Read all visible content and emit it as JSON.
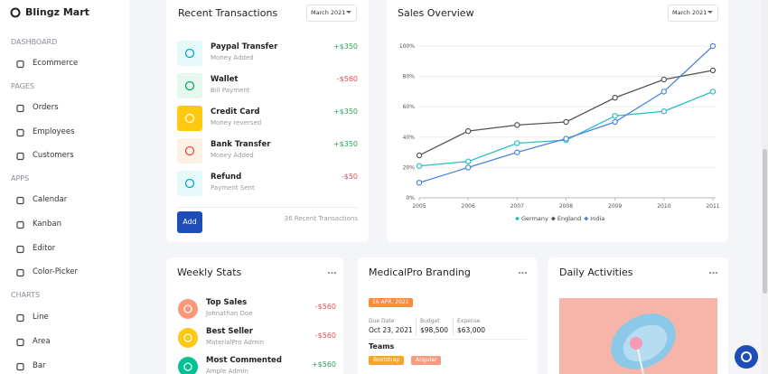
{
  "brand": "Blingz Mart",
  "sidebar": [
    {
      "heading": "DASHBOARD",
      "items": [
        "Ecommerce"
      ]
    },
    {
      "heading": "PAGES",
      "items": [
        "Orders",
        "Employees",
        "Customers"
      ]
    },
    {
      "heading": "APPS",
      "items": [
        "Calendar",
        "Kanban",
        "Editor",
        "Color-Picker"
      ]
    },
    {
      "heading": "CHARTS",
      "items": [
        "Line",
        "Area",
        "Bar"
      ]
    }
  ],
  "transactions": {
    "title": "Recent Transactions",
    "period": "March 2021",
    "items": [
      {
        "name": "Paypal Transfer",
        "note": "Money Added",
        "amount": "+$350"
      },
      {
        "name": "Wallet",
        "note": "Bill Payment",
        "amount": "-$560"
      },
      {
        "name": "Credit Card",
        "note": "Money reversed",
        "amount": "+$350"
      },
      {
        "name": "Bank Transfer",
        "note": "Money Added",
        "amount": "+$350"
      },
      {
        "name": "Refund",
        "note": "Payment Sent",
        "amount": "-$50"
      }
    ],
    "button": "Add",
    "footer": "36 Recent Transactions"
  },
  "sales": {
    "title": "Sales Overview",
    "period": "March 2021"
  },
  "chart_data": {
    "type": "line",
    "categories": [
      "2005",
      "2006",
      "2007",
      "2008",
      "2009",
      "2010",
      "2011"
    ],
    "series": [
      {
        "name": "Germany",
        "color": "#2bbfc4",
        "values": [
          21,
          24,
          36,
          38,
          54,
          57,
          70
        ]
      },
      {
        "name": "England",
        "color": "#555555",
        "values": [
          28,
          44,
          48,
          50,
          66,
          78,
          84
        ]
      },
      {
        "name": "India",
        "color": "#4c84e0",
        "values": [
          10,
          20,
          30,
          39,
          50,
          70,
          100
        ]
      }
    ],
    "ylim": [
      0,
      100
    ],
    "yticks": [
      {
        "value": 0,
        "label": "0%"
      },
      {
        "value": 20,
        "label": "20%"
      },
      {
        "value": 40,
        "label": "40%"
      },
      {
        "value": 60,
        "label": "60%"
      },
      {
        "value": 80,
        "label": "80%"
      },
      {
        "value": 100,
        "label": "100%"
      }
    ],
    "grid": true,
    "legend": "bottom"
  },
  "weekly": {
    "title": "Weekly Stats",
    "items": [
      {
        "name": "Top Sales",
        "note": "Johnathan Doe",
        "amount": "-$560"
      },
      {
        "name": "Best Seller",
        "note": "MaterialPro Admin",
        "amount": "-$560"
      },
      {
        "name": "Most Commented",
        "note": "Ample Admin",
        "amount": "+$560"
      }
    ]
  },
  "branding": {
    "title": "MedicalPro Branding",
    "date": "16 APR, 2021",
    "fields": [
      {
        "label": "Due Date",
        "value": "Oct 23, 2021"
      },
      {
        "label": "Budget",
        "value": "$98,500"
      },
      {
        "label": "Expense",
        "value": "$63,000"
      }
    ],
    "teams": "Teams",
    "tags": [
      "Bootstrap",
      "Angular"
    ]
  },
  "daily": {
    "title": "Daily Activities"
  }
}
